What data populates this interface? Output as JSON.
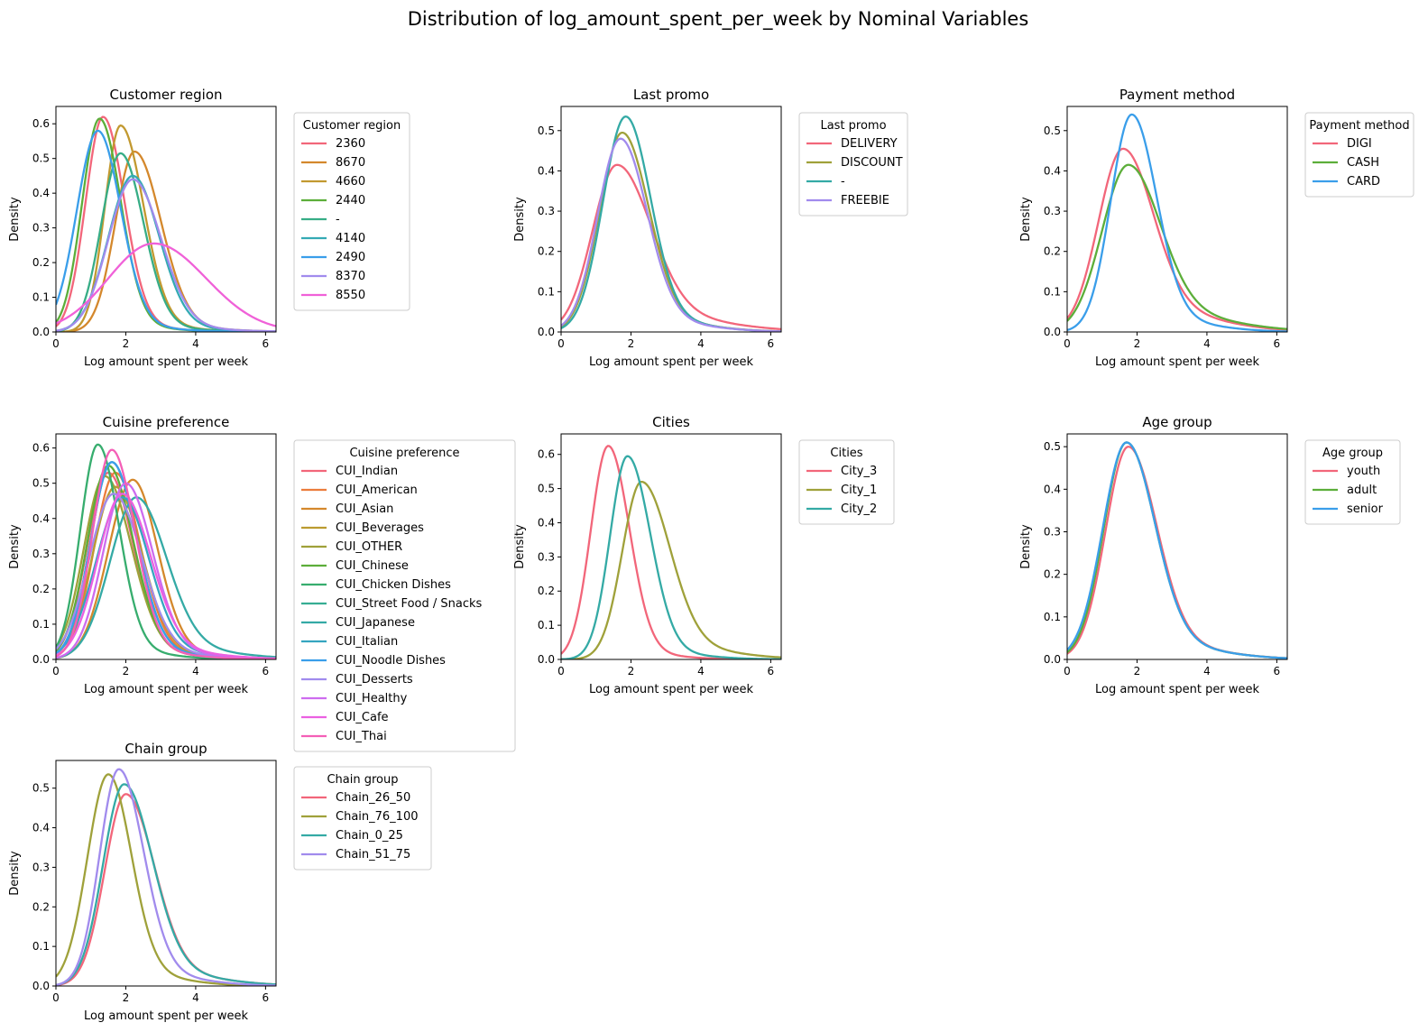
{
  "figure": {
    "title": "Distribution of log_amount_spent_per_week by Nominal Variables"
  },
  "chart_data": [
    {
      "type": "line",
      "title": "Customer region",
      "xlabel": "Log amount spent per week",
      "ylabel": "Density",
      "xlim": [
        0,
        6.3
      ],
      "ylim": [
        0,
        0.65
      ],
      "xticks": [
        0,
        2,
        4,
        6
      ],
      "yticks": [
        0.0,
        0.1,
        0.2,
        0.3,
        0.4,
        0.5,
        0.6
      ],
      "legend": {
        "title": "Customer region",
        "placement": "outside-right"
      },
      "series": [
        {
          "name": "2360",
          "color": "#f2667a",
          "peak": [
            1.35,
            0.62
          ],
          "sl": 0.5,
          "sr": 0.6,
          "tail": 0.04
        },
        {
          "name": "8670",
          "color": "#d4882c",
          "peak": [
            2.25,
            0.52
          ],
          "sl": 0.55,
          "sr": 0.75,
          "tail": 0.04
        },
        {
          "name": "4660",
          "color": "#c29930",
          "peak": [
            1.85,
            0.595
          ],
          "sl": 0.45,
          "sr": 0.65,
          "tail": 0.04
        },
        {
          "name": "2440",
          "color": "#5cae3a",
          "peak": [
            1.25,
            0.615
          ],
          "sl": 0.5,
          "sr": 0.6,
          "tail": 0.04
        },
        {
          "name": "-",
          "color": "#37ad86",
          "peak": [
            1.85,
            0.515
          ],
          "sl": 0.55,
          "sr": 0.65,
          "tail": 0.04
        },
        {
          "name": "4140",
          "color": "#34aab4",
          "peak": [
            2.2,
            0.45
          ],
          "sl": 0.7,
          "sr": 0.75,
          "tail": 0.04
        },
        {
          "name": "2490",
          "color": "#3a9eea",
          "peak": [
            1.2,
            0.58
          ],
          "sl": 0.6,
          "sr": 0.65,
          "tail": 0.04
        },
        {
          "name": "8370",
          "color": "#a18bed",
          "peak": [
            2.2,
            0.44
          ],
          "sl": 0.7,
          "sr": 0.8,
          "tail": 0.04
        },
        {
          "name": "8550",
          "color": "#f061d8",
          "peak": [
            2.8,
            0.255
          ],
          "sl": 1.3,
          "sr": 1.5,
          "tail": 0.0
        }
      ]
    },
    {
      "type": "line",
      "title": "Last promo",
      "xlabel": "Log amount spent per week",
      "ylabel": "Density",
      "xlim": [
        0,
        6.3
      ],
      "ylim": [
        0,
        0.56
      ],
      "xticks": [
        0,
        2,
        4,
        6
      ],
      "yticks": [
        0.0,
        0.1,
        0.2,
        0.3,
        0.4,
        0.5
      ],
      "legend": {
        "title": "Last promo",
        "placement": "outside-right"
      },
      "series": [
        {
          "name": "DELIVERY",
          "color": "#f2667a",
          "peak": [
            1.6,
            0.415
          ],
          "sl": 0.7,
          "sr": 0.95,
          "tail": 0.14
        },
        {
          "name": "DISCOUNT",
          "color": "#9fa13a",
          "peak": [
            1.75,
            0.495
          ],
          "sl": 0.65,
          "sr": 0.75,
          "tail": 0.08
        },
        {
          "name": "-",
          "color": "#34aaa5",
          "peak": [
            1.85,
            0.535
          ],
          "sl": 0.65,
          "sr": 0.7,
          "tail": 0.08
        },
        {
          "name": "FREEBIE",
          "color": "#a18bed",
          "peak": [
            1.7,
            0.48
          ],
          "sl": 0.65,
          "sr": 0.75,
          "tail": 0.08
        }
      ]
    },
    {
      "type": "line",
      "title": "Payment method",
      "xlabel": "Log amount spent per week",
      "ylabel": "Density",
      "xlim": [
        0,
        6.3
      ],
      "ylim": [
        0,
        0.56
      ],
      "xticks": [
        0,
        2,
        4,
        6
      ],
      "yticks": [
        0.0,
        0.1,
        0.2,
        0.3,
        0.4,
        0.5
      ],
      "legend": {
        "title": "Payment method",
        "placement": "outside-right"
      },
      "series": [
        {
          "name": "DIGI",
          "color": "#f2667a",
          "peak": [
            1.6,
            0.455
          ],
          "sl": 0.7,
          "sr": 0.85,
          "tail": 0.16
        },
        {
          "name": "CASH",
          "color": "#5cae3a",
          "peak": [
            1.75,
            0.415
          ],
          "sl": 0.75,
          "sr": 0.9,
          "tail": 0.16
        },
        {
          "name": "CARD",
          "color": "#3a9eea",
          "peak": [
            1.85,
            0.54
          ],
          "sl": 0.6,
          "sr": 0.7,
          "tail": 0.08
        }
      ]
    },
    {
      "type": "line",
      "title": "Cuisine preference",
      "xlabel": "Log amount spent per week",
      "ylabel": "Density",
      "xlim": [
        0,
        6.3
      ],
      "ylim": [
        0,
        0.64
      ],
      "xticks": [
        0,
        2,
        4,
        6
      ],
      "yticks": [
        0.0,
        0.1,
        0.2,
        0.3,
        0.4,
        0.5,
        0.6
      ],
      "legend": {
        "title": "Cuisine preference",
        "placement": "outside-right"
      },
      "series": [
        {
          "name": "CUI_Indian",
          "color": "#f2667a",
          "peak": [
            1.5,
            0.53
          ],
          "sl": 0.6,
          "sr": 0.7,
          "tail": 0.06
        },
        {
          "name": "CUI_American",
          "color": "#ec7c3c",
          "peak": [
            1.7,
            0.53
          ],
          "sl": 0.6,
          "sr": 0.7,
          "tail": 0.06
        },
        {
          "name": "CUI_Asian",
          "color": "#d4882c",
          "peak": [
            2.2,
            0.51
          ],
          "sl": 0.7,
          "sr": 0.7,
          "tail": 0.06
        },
        {
          "name": "CUI_Beverages",
          "color": "#bb9b30",
          "peak": [
            1.7,
            0.49
          ],
          "sl": 0.65,
          "sr": 0.75,
          "tail": 0.06
        },
        {
          "name": "CUI_OTHER",
          "color": "#9fa13a",
          "peak": [
            1.4,
            0.52
          ],
          "sl": 0.6,
          "sr": 0.75,
          "tail": 0.06
        },
        {
          "name": "CUI_Chinese",
          "color": "#5cae3a",
          "peak": [
            1.5,
            0.55
          ],
          "sl": 0.6,
          "sr": 0.7,
          "tail": 0.06
        },
        {
          "name": "CUI_Chicken Dishes",
          "color": "#37ad6e",
          "peak": [
            1.2,
            0.61
          ],
          "sl": 0.5,
          "sr": 0.6,
          "tail": 0.06
        },
        {
          "name": "CUI_Street Food / Snacks",
          "color": "#36ad93",
          "peak": [
            1.6,
            0.56
          ],
          "sl": 0.6,
          "sr": 0.7,
          "tail": 0.06
        },
        {
          "name": "CUI_Japanese",
          "color": "#34aaa5",
          "peak": [
            2.3,
            0.46
          ],
          "sl": 0.75,
          "sr": 0.85,
          "tail": 0.1
        },
        {
          "name": "CUI_Italian",
          "color": "#35a5c0",
          "peak": [
            1.9,
            0.46
          ],
          "sl": 0.75,
          "sr": 0.75,
          "tail": 0.08
        },
        {
          "name": "CUI_Noodle Dishes",
          "color": "#3a9eea",
          "peak": [
            1.6,
            0.56
          ],
          "sl": 0.6,
          "sr": 0.7,
          "tail": 0.06
        },
        {
          "name": "CUI_Desserts",
          "color": "#a18bed",
          "peak": [
            1.65,
            0.47
          ],
          "sl": 0.7,
          "sr": 0.8,
          "tail": 0.06
        },
        {
          "name": "CUI_Healthy",
          "color": "#cd6cef",
          "peak": [
            2.0,
            0.5
          ],
          "sl": 0.65,
          "sr": 0.75,
          "tail": 0.06
        },
        {
          "name": "CUI_Cafe",
          "color": "#eb60e1",
          "peak": [
            1.9,
            0.47
          ],
          "sl": 0.7,
          "sr": 0.8,
          "tail": 0.08
        },
        {
          "name": "CUI_Thai",
          "color": "#f45fb7",
          "peak": [
            1.6,
            0.595
          ],
          "sl": 0.55,
          "sr": 0.65,
          "tail": 0.06
        }
      ]
    },
    {
      "type": "line",
      "title": "Cities",
      "xlabel": "Log amount spent per week",
      "ylabel": "Density",
      "xlim": [
        0,
        6.3
      ],
      "ylim": [
        0,
        0.66
      ],
      "xticks": [
        0,
        2,
        4,
        6
      ],
      "yticks": [
        0.0,
        0.1,
        0.2,
        0.3,
        0.4,
        0.5,
        0.6
      ],
      "legend": {
        "title": "Cities",
        "placement": "outside-right"
      },
      "series": [
        {
          "name": "City_3",
          "color": "#f2667a",
          "peak": [
            1.35,
            0.625
          ],
          "sl": 0.5,
          "sr": 0.6,
          "tail": 0.04
        },
        {
          "name": "City_1",
          "color": "#9fa13a",
          "peak": [
            2.3,
            0.52
          ],
          "sl": 0.55,
          "sr": 0.8,
          "tail": 0.1
        },
        {
          "name": "City_2",
          "color": "#34aaa5",
          "peak": [
            1.9,
            0.595
          ],
          "sl": 0.5,
          "sr": 0.65,
          "tail": 0.05
        }
      ]
    },
    {
      "type": "line",
      "title": "Age group",
      "xlabel": "Log amount spent per week",
      "ylabel": "Density",
      "xlim": [
        0,
        6.3
      ],
      "ylim": [
        0,
        0.53
      ],
      "xticks": [
        0,
        2,
        4,
        6
      ],
      "yticks": [
        0.0,
        0.1,
        0.2,
        0.3,
        0.4,
        0.5
      ],
      "legend": {
        "title": "Age group",
        "placement": "outside-right"
      },
      "series": [
        {
          "name": "youth",
          "color": "#f2667a",
          "peak": [
            1.75,
            0.5
          ],
          "sl": 0.65,
          "sr": 0.8,
          "tail": 0.1
        },
        {
          "name": "adult",
          "color": "#5cae3a",
          "peak": [
            1.7,
            0.51
          ],
          "sl": 0.65,
          "sr": 0.8,
          "tail": 0.1
        },
        {
          "name": "senior",
          "color": "#3a9eea",
          "peak": [
            1.7,
            0.51
          ],
          "sl": 0.68,
          "sr": 0.8,
          "tail": 0.1
        }
      ]
    },
    {
      "type": "line",
      "title": "Chain group",
      "xlabel": "Log amount spent per week",
      "ylabel": "Density",
      "xlim": [
        0,
        6.3
      ],
      "ylim": [
        0,
        0.57
      ],
      "xticks": [
        0,
        2,
        4,
        6
      ],
      "yticks": [
        0.0,
        0.1,
        0.2,
        0.3,
        0.4,
        0.5
      ],
      "legend": {
        "title": "Chain group",
        "placement": "outside-right"
      },
      "series": [
        {
          "name": "Chain_26_50",
          "color": "#f2667a",
          "peak": [
            2.0,
            0.485
          ],
          "sl": 0.6,
          "sr": 0.8,
          "tail": 0.1
        },
        {
          "name": "Chain_76_100",
          "color": "#9fa13a",
          "peak": [
            1.5,
            0.535
          ],
          "sl": 0.6,
          "sr": 0.65,
          "tail": 0.08
        },
        {
          "name": "Chain_0_25",
          "color": "#34aaa5",
          "peak": [
            1.95,
            0.51
          ],
          "sl": 0.6,
          "sr": 0.8,
          "tail": 0.1
        },
        {
          "name": "Chain_51_75",
          "color": "#a18bed",
          "peak": [
            1.8,
            0.548
          ],
          "sl": 0.55,
          "sr": 0.7,
          "tail": 0.08
        }
      ]
    }
  ]
}
